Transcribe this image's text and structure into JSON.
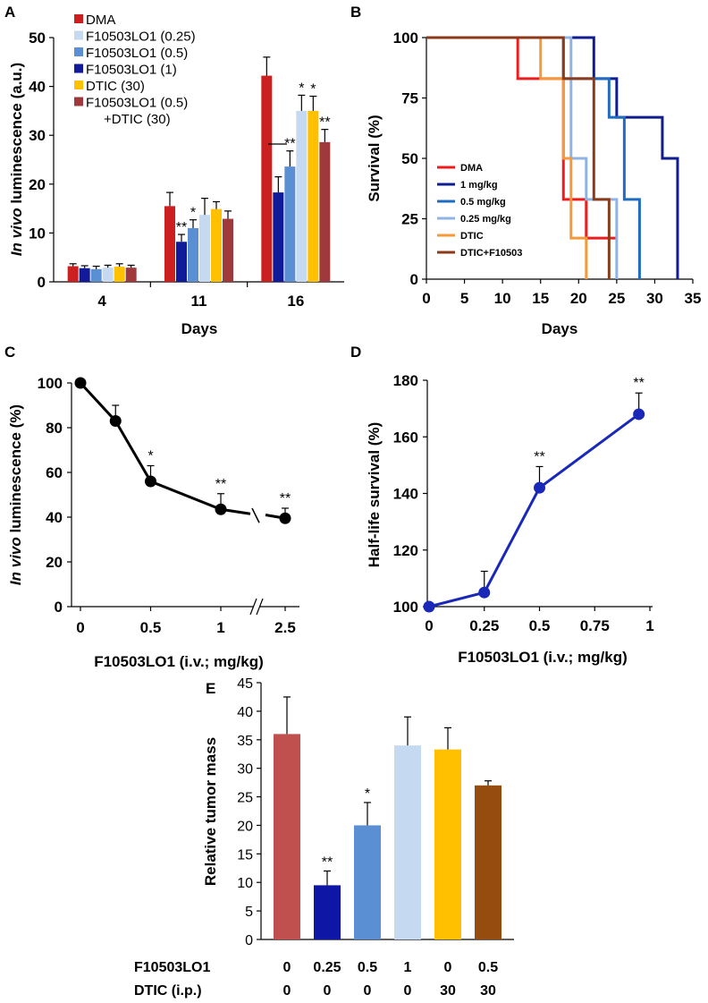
{
  "panels": {
    "a": "A",
    "b": "B",
    "c": "C",
    "d": "D",
    "e": "E"
  },
  "chart_data": [
    {
      "panel": "A",
      "type": "bar",
      "xlabel": "Days",
      "ylabel_italic": "In vivo",
      "ylabel_rest": " luminescence (a.u.)",
      "categories": [
        "4",
        "11",
        "16"
      ],
      "ylim": [
        0,
        50
      ],
      "yticks": [
        0,
        10,
        20,
        30,
        40,
        50
      ],
      "series": [
        {
          "name": "DMA",
          "color": "#cc1f1f",
          "values": [
            3.2,
            15.5,
            42.2
          ],
          "errors": [
            0.5,
            2.8,
            3.8
          ],
          "stars": [
            "",
            "",
            ""
          ]
        },
        {
          "name": "F10503LO1 (1)",
          "color": "#101a9a",
          "values": [
            2.8,
            8.2,
            18.3
          ],
          "errors": [
            0.5,
            1.5,
            3.2
          ],
          "stars": [
            "",
            "**",
            ""
          ]
        },
        {
          "name": "F10503LO1 (0.5)",
          "color": "#5b8fd4",
          "values": [
            2.6,
            11.0,
            23.6
          ],
          "errors": [
            0.6,
            1.7,
            3.2
          ],
          "stars": [
            "",
            "*",
            "**"
          ]
        },
        {
          "name": "F10503LO1 (0.25)",
          "color": "#c5d9f1",
          "values": [
            2.9,
            13.7,
            35.0
          ],
          "errors": [
            0.5,
            3.4,
            3.2
          ],
          "stars": [
            "",
            "",
            "*"
          ]
        },
        {
          "name": "DTIC (30)",
          "color": "#ffc000",
          "values": [
            3.1,
            14.9,
            35.0
          ],
          "errors": [
            0.6,
            1.5,
            3.0
          ],
          "stars": [
            "",
            "",
            "*"
          ]
        },
        {
          "name": "F10503LO1 (0.5) +DTIC (30)",
          "color": "#a0393b",
          "values": [
            2.9,
            12.9,
            28.6
          ],
          "errors": [
            0.5,
            1.6,
            2.6
          ],
          "stars": [
            "",
            "",
            "**"
          ]
        }
      ],
      "legend": {
        "placement": "top-left",
        "entries": [
          {
            "label": "DMA",
            "color": "#cc1f1f"
          },
          {
            "label": "F10503LO1 (0.25)",
            "color": "#c5d9f1"
          },
          {
            "label": "F10503LO1 (0.5)",
            "color": "#5b8fd4"
          },
          {
            "label": "F10503LO1 (1)",
            "color": "#101a9a"
          },
          {
            "label": "DTIC (30)",
            "color": "#ffc000"
          },
          {
            "label": "F10503LO1 (0.5)",
            "label2": "+DTIC (30)",
            "color": "#a0393b"
          }
        ]
      }
    },
    {
      "panel": "B",
      "type": "line",
      "subtype": "step",
      "xlabel": "Days",
      "ylabel": "Survival (%)",
      "xlim": [
        0,
        35
      ],
      "ylim": [
        0,
        100
      ],
      "xticks": [
        0,
        5,
        10,
        15,
        20,
        25,
        30,
        35
      ],
      "yticks": [
        0,
        25,
        50,
        75,
        100
      ],
      "series": [
        {
          "name": "DMA",
          "color": "#ee1c1c",
          "points": [
            [
              0,
              100
            ],
            [
              12,
              100
            ],
            [
              12,
              83
            ],
            [
              18,
              83
            ],
            [
              18,
              33
            ],
            [
              21,
              33
            ],
            [
              21,
              17
            ],
            [
              25,
              17
            ]
          ]
        },
        {
          "name": "1 mg/kg",
          "color": "#0f1d8f",
          "points": [
            [
              0,
              100
            ],
            [
              22,
              100
            ],
            [
              22,
              83
            ],
            [
              25,
              83
            ],
            [
              25,
              67
            ],
            [
              31,
              67
            ],
            [
              31,
              50
            ],
            [
              33,
              50
            ],
            [
              33,
              0
            ]
          ]
        },
        {
          "name": "0.5 mg/kg",
          "color": "#1f6cc0",
          "points": [
            [
              0,
              100
            ],
            [
              18,
              100
            ],
            [
              18,
              83
            ],
            [
              24,
              83
            ],
            [
              24,
              67
            ],
            [
              26,
              67
            ],
            [
              26,
              33
            ],
            [
              28,
              33
            ],
            [
              28,
              0
            ]
          ]
        },
        {
          "name": "0.25 mg/kg",
          "color": "#8fb4e3",
          "points": [
            [
              0,
              100
            ],
            [
              19,
              100
            ],
            [
              19,
              50
            ],
            [
              21,
              50
            ],
            [
              21,
              33
            ],
            [
              25,
              33
            ],
            [
              25,
              0
            ]
          ]
        },
        {
          "name": "DTIC",
          "color": "#f59a3c",
          "points": [
            [
              0,
              100
            ],
            [
              15,
              100
            ],
            [
              15,
              83
            ],
            [
              18,
              83
            ],
            [
              18,
              50
            ],
            [
              19,
              50
            ],
            [
              19,
              17
            ],
            [
              21,
              17
            ],
            [
              21,
              0
            ]
          ]
        },
        {
          "name": "DTIC+F10503",
          "color": "#8b3a1a",
          "points": [
            [
              0,
              100
            ],
            [
              18,
              100
            ],
            [
              18,
              83
            ],
            [
              22,
              83
            ],
            [
              22,
              33
            ],
            [
              24,
              33
            ],
            [
              24,
              0
            ]
          ]
        }
      ],
      "legend": {
        "placement": "bottom-left",
        "labels": [
          "DMA",
          "1 mg/kg",
          "0.5 mg/kg",
          "0.25 mg/kg",
          "DTIC",
          "DTIC+F10503"
        ]
      }
    },
    {
      "panel": "C",
      "type": "line",
      "xlabel": "F10503LO1 (i.v.; mg/kg)",
      "ylabel_italic": "In vivo",
      "ylabel_rest": " luminescence (%)",
      "x_tick_labels": [
        "0",
        "0.5",
        "1",
        "2.5"
      ],
      "x": [
        0,
        0.25,
        0.5,
        1,
        2.5
      ],
      "y": [
        100,
        83,
        56,
        43.5,
        39.5
      ],
      "errors": [
        0,
        7,
        7,
        7,
        4.5
      ],
      "stars": [
        "",
        "",
        "*",
        "**",
        "**"
      ],
      "ylim": [
        0,
        100
      ],
      "yticks": [
        0,
        20,
        40,
        60,
        80,
        100
      ],
      "axis_break": true,
      "color": "#000000"
    },
    {
      "panel": "D",
      "type": "line",
      "xlabel": "F10503LO1 (i.v.; mg/kg)",
      "ylabel": "Half-life survival (%)",
      "x": [
        0,
        0.25,
        0.5,
        1
      ],
      "y": [
        100,
        105,
        142,
        168
      ],
      "errors": [
        0,
        7.5,
        7.5,
        7.5
      ],
      "stars": [
        "",
        "",
        "**",
        "**"
      ],
      "xlim": [
        0,
        1
      ],
      "ylim": [
        100,
        180
      ],
      "xticks": [
        "0",
        "0.25",
        "0.5",
        "0.75",
        "1"
      ],
      "yticks": [
        100,
        120,
        140,
        160,
        180
      ],
      "color": "#1a28b8"
    },
    {
      "panel": "E",
      "type": "bar",
      "ylabel": "Relative tumor mass",
      "ylim": [
        0,
        45
      ],
      "yticks": [
        0,
        5,
        10,
        15,
        20,
        25,
        30,
        35,
        40,
        45
      ],
      "row_labels": [
        "F10503LO1",
        "DTIC (i.p.)"
      ],
      "f10503lo1": [
        "0",
        "0.25",
        "0.5",
        "1",
        "0",
        "0.5"
      ],
      "dtic": [
        "0",
        "0",
        "0",
        "0",
        "30",
        "30"
      ],
      "values": [
        36,
        9.5,
        20,
        34,
        33.3,
        27
      ],
      "errors": [
        6.5,
        2.5,
        4,
        5,
        3.8,
        0.8
      ],
      "stars": [
        "",
        "**",
        "*",
        "",
        "",
        ""
      ],
      "colors": [
        "#c0504d",
        "#0e16a6",
        "#5b8fd4",
        "#c5d9f1",
        "#ffc000",
        "#964b0f"
      ]
    }
  ]
}
